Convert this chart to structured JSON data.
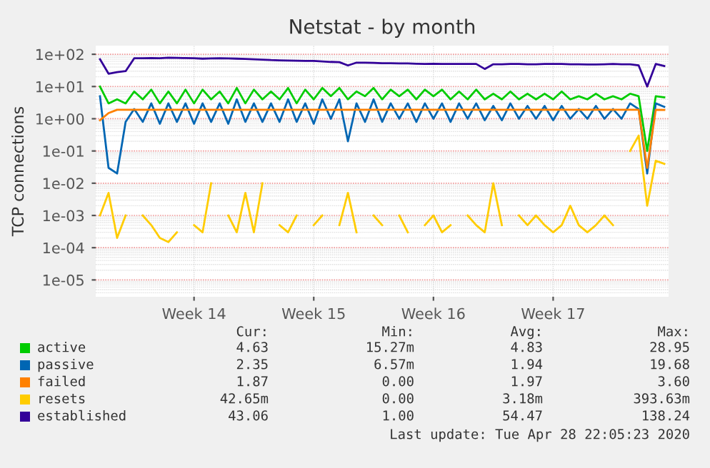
{
  "chart_data": {
    "type": "line",
    "title": "Netstat - by month",
    "ylabel": "TCP connections",
    "categories": [
      null,
      null,
      null,
      null,
      null,
      null,
      null,
      null,
      null,
      null,
      null,
      "Week 14",
      null,
      null,
      null,
      null,
      null,
      null,
      null,
      null,
      null,
      null,
      null,
      null,
      null,
      "Week 15",
      null,
      null,
      null,
      null,
      null,
      null,
      null,
      null,
      null,
      null,
      null,
      null,
      null,
      "Week 16",
      null,
      null,
      null,
      null,
      null,
      null,
      null,
      null,
      null,
      null,
      null,
      null,
      null,
      "Week 17",
      null,
      null,
      null,
      null,
      null,
      null,
      null,
      null,
      null,
      null,
      null,
      null,
      null
    ],
    "log": true,
    "ylim": [
      3e-06,
      185
    ],
    "yticks": [
      {
        "value": 1e-05,
        "label": "1e-05"
      },
      {
        "value": 0.0001,
        "label": "1e-04"
      },
      {
        "value": 0.001,
        "label": "1e-03"
      },
      {
        "value": 0.01,
        "label": "1e-02"
      },
      {
        "value": 0.1,
        "label": "1e-01"
      },
      {
        "value": 1,
        "label": "1e+00"
      },
      {
        "value": 10,
        "label": "1e+01"
      },
      {
        "value": 100,
        "label": "1e+02"
      }
    ],
    "grid": true,
    "legend": "bottom",
    "series": [
      {
        "name": "active",
        "color": "#00cc00",
        "values": [
          10,
          3,
          4,
          3,
          7,
          4,
          8,
          3,
          7,
          3,
          8,
          3,
          8,
          4,
          7,
          3,
          9,
          3,
          8,
          4,
          7,
          4,
          9,
          3,
          8,
          4,
          9,
          5,
          9,
          4,
          7,
          5,
          9,
          4,
          8,
          5,
          8,
          4,
          8,
          5,
          8,
          4,
          7,
          4,
          8,
          4,
          6,
          4,
          7,
          4,
          6,
          4,
          6,
          4,
          7,
          4,
          5,
          4,
          6,
          4,
          5,
          4,
          6,
          5,
          0.1,
          5,
          4.6
        ]
      },
      {
        "name": "passive",
        "color": "#0066b3",
        "values": [
          5,
          0.03,
          0.02,
          0.8,
          2,
          0.8,
          3,
          0.7,
          3,
          0.8,
          3,
          0.7,
          3,
          0.8,
          3,
          0.7,
          4,
          0.8,
          3,
          0.8,
          3,
          0.8,
          4,
          0.8,
          3,
          0.7,
          4,
          1,
          4,
          0.2,
          3,
          0.8,
          4,
          0.8,
          3,
          1,
          3,
          0.8,
          3,
          1,
          3,
          0.8,
          3,
          1,
          3,
          0.9,
          2.5,
          0.9,
          3,
          1,
          2.5,
          1,
          2.5,
          0.9,
          2.5,
          1,
          2,
          1,
          2.5,
          1,
          2,
          1,
          3,
          2,
          0.02,
          3,
          2.35
        ]
      },
      {
        "name": "failed",
        "color": "#ff8000",
        "values": [
          0.9,
          1.5,
          1.9,
          1.9,
          1.9,
          1.9,
          1.9,
          1.9,
          1.9,
          1.9,
          1.9,
          1.9,
          1.9,
          1.9,
          1.9,
          1.9,
          1.9,
          1.9,
          1.9,
          1.9,
          1.9,
          1.9,
          1.9,
          1.9,
          1.9,
          1.9,
          1.9,
          1.9,
          1.9,
          1.9,
          1.9,
          1.9,
          1.9,
          1.9,
          1.9,
          1.9,
          1.9,
          1.9,
          1.9,
          1.9,
          1.9,
          1.9,
          1.9,
          1.9,
          1.9,
          1.9,
          1.9,
          1.9,
          1.9,
          1.9,
          1.9,
          1.9,
          1.9,
          1.9,
          1.9,
          1.9,
          1.9,
          1.9,
          1.9,
          1.9,
          1.9,
          1.9,
          1.9,
          1.9,
          0.03,
          1.9,
          1.87
        ]
      },
      {
        "name": "resets",
        "color": "#ffcc00",
        "values": [
          0.001,
          0.005,
          0.0002,
          0.001,
          null,
          0.001,
          0.0005,
          0.0002,
          0.00015,
          0.0003,
          null,
          0.0005,
          0.0003,
          0.01,
          null,
          0.001,
          0.0003,
          0.005,
          0.0003,
          0.01,
          null,
          0.0005,
          0.0003,
          0.001,
          null,
          0.0005,
          0.001,
          null,
          0.0005,
          0.005,
          0.0003,
          null,
          0.001,
          0.0005,
          null,
          0.001,
          0.0003,
          null,
          0.0005,
          0.001,
          0.0003,
          0.0005,
          null,
          0.001,
          0.0005,
          0.0003,
          0.01,
          0.0005,
          null,
          0.001,
          0.0005,
          0.001,
          0.0005,
          0.0003,
          0.0005,
          0.002,
          0.0005,
          0.0003,
          0.0005,
          0.001,
          0.0005,
          null,
          0.1,
          0.3,
          0.002,
          0.05,
          0.04
        ]
      },
      {
        "name": "established",
        "color": "#330099",
        "values": [
          70,
          25,
          28,
          30,
          75,
          75,
          76,
          75,
          78,
          77,
          76,
          75,
          73,
          74,
          75,
          74,
          73,
          72,
          70,
          68,
          66,
          65,
          64,
          63,
          62,
          62,
          60,
          58,
          57,
          45,
          55,
          55,
          54,
          53,
          53,
          52,
          52,
          51,
          50,
          51,
          50,
          50,
          50,
          50,
          50,
          35,
          49,
          49,
          50,
          50,
          49,
          49,
          50,
          50,
          50,
          49,
          49,
          48,
          48,
          49,
          50,
          49,
          49,
          45,
          10,
          50,
          43
        ]
      }
    ],
    "annotations": [
      "Cur:",
      "Min:",
      "Avg:",
      "Max:",
      "4.63",
      "15.27m",
      "4.83",
      "28.95",
      "2.35",
      "6.57m",
      "1.94",
      "19.68",
      "1.87",
      "0.00",
      "1.97",
      "3.60",
      "42.65m",
      "0.00",
      "3.18m",
      "393.63m",
      "43.06",
      "1.00",
      "54.47",
      "138.24",
      "Last update: Tue Apr 28 22:05:23 2020"
    ]
  }
}
